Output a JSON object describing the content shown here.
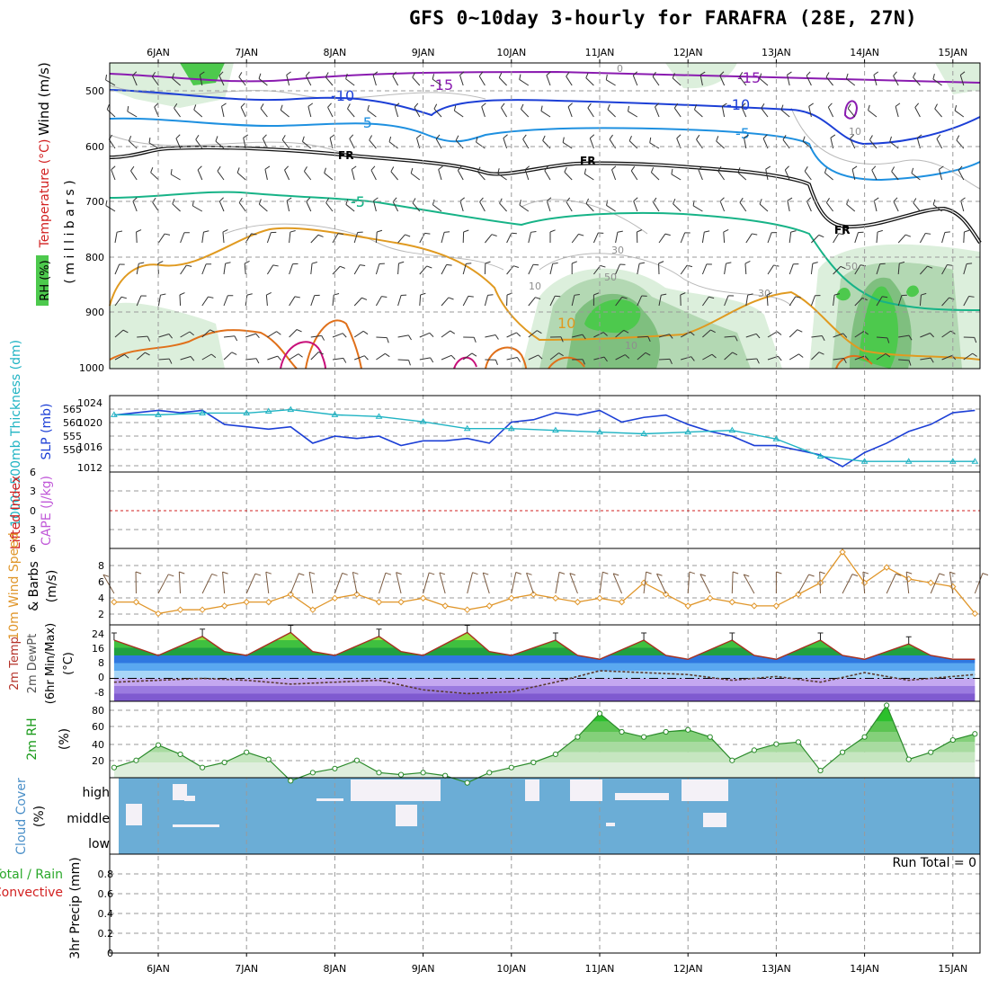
{
  "title": "GFS 0~10day 3-hourly for FARAFRA (28E, 27N)",
  "date_labels": [
    "6JAN",
    "7JAN",
    "8JAN",
    "9JAN",
    "10JAN",
    "11JAN",
    "12JAN",
    "13JAN",
    "14JAN",
    "15JAN"
  ],
  "colors": {
    "purple": "#8a1bb0",
    "blue": "#1c3fd6",
    "lightblue": "#1e90e0",
    "teal": "#17b387",
    "orange": "#e09a20",
    "darkorange": "#e0701a",
    "magenta": "#c8107a",
    "rh_light": "#dcefdc",
    "rh_mid": "#b3d8b3",
    "rh_dark": "#7fbf7f",
    "rh_green": "#4dc94d",
    "cloud": "#6badd6",
    "slp": "#1c3fd6",
    "thickness": "#1fb3c3",
    "wind10": "#e0962a",
    "li_line": "#d22020"
  },
  "panels": {
    "upper": {
      "ylabel_parts": [
        "Wind (m/s)",
        "Temperature (°C)",
        "RH (%)",
        "( m i l l i b a r s )"
      ],
      "yticks": [
        "500",
        "600",
        "700",
        "800",
        "900",
        "1000"
      ],
      "contour_labels": [
        "-15",
        "-15",
        "-10",
        "-10",
        "-5",
        "-5",
        "FR",
        "FR",
        "FR",
        "FR",
        "-5",
        "-5",
        "10",
        "50",
        "50",
        "30",
        "30",
        "10",
        "10",
        "10",
        "0"
      ]
    },
    "slp": {
      "ylabel_left": "1000~500mb Thickness (dm)",
      "ylabel_right": "SLP (mb)",
      "yticks_left": [
        "565",
        "560",
        "555",
        "550"
      ],
      "yticks_right": [
        "1024",
        "1020",
        "1016",
        "1012"
      ]
    },
    "cape": {
      "ylabel_parts": [
        "Lifted Index",
        "CAPE (J/kg)"
      ],
      "yticks": [
        "6",
        "3",
        "0",
        "3",
        "6"
      ]
    },
    "wind10": {
      "ylabel_parts": [
        "10m Wind Speed",
        "& Barbs",
        "(m/s)"
      ],
      "yticks": [
        "8",
        "6",
        "4",
        "2"
      ]
    },
    "temp2m": {
      "ylabel_parts": [
        "2m Temp",
        "2m DewPt",
        "(6hr Min/Max)",
        "(°C)"
      ],
      "yticks": [
        "24",
        "16",
        "8",
        "0",
        "-8"
      ]
    },
    "rh2m": {
      "ylabel_parts": [
        "2m RH",
        "(%)"
      ],
      "yticks": [
        "80",
        "60",
        "40",
        "20"
      ]
    },
    "cloud": {
      "ylabel_parts": [
        "Cloud Cover",
        "(%)"
      ],
      "levels": [
        "high",
        "middle",
        "low"
      ]
    },
    "precip": {
      "ylabel_parts": [
        "Total / Rain",
        "Convective",
        "3hr Precip (mm)"
      ],
      "yticks": [
        "0.8",
        "0.6",
        "0.4",
        "0.2",
        "0"
      ],
      "run_total": "Run Total = 0"
    }
  },
  "chart_data": [
    {
      "type": "line",
      "title": "",
      "ylabel": "SLP (mb)",
      "x_unit": "days from 6JAN 00Z",
      "series": [
        {
          "name": "SLP",
          "x": [
            -0.5,
            -0.25,
            0,
            0.25,
            0.5,
            0.75,
            1,
            1.25,
            1.5,
            1.75,
            2,
            2.25,
            2.5,
            2.75,
            3,
            3.25,
            3.5,
            3.75,
            4,
            4.25,
            4.5,
            4.75,
            5,
            5.25,
            5.5,
            5.75,
            6,
            6.25,
            6.5,
            6.75,
            7,
            7.25,
            7.5,
            7.75,
            8,
            8.25,
            8.5,
            8.75,
            9,
            9.25
          ],
          "values": [
            1022,
            1022.5,
            1023,
            1022.5,
            1023,
            1020,
            1019.5,
            1019,
            1019.5,
            1016,
            1017.5,
            1017,
            1017.5,
            1015.5,
            1016.5,
            1016.5,
            1017,
            1016,
            1020.5,
            1021,
            1022.5,
            1022,
            1023,
            1020.5,
            1021.5,
            1022,
            1020,
            1018.5,
            1017.5,
            1015.5,
            1015.5,
            1014.5,
            1013.5,
            1011,
            1014,
            1016,
            1018.5,
            1020,
            1022.5,
            1023
          ]
        },
        {
          "name": "Thickness",
          "x": [
            -0.5,
            0,
            0.5,
            1,
            1.25,
            1.5,
            2,
            2.5,
            3,
            3.5,
            4,
            4.5,
            5,
            5.5,
            6,
            6.5,
            7,
            7.5,
            8,
            8.5,
            9,
            9.25
          ],
          "values": [
            563,
            563,
            563.5,
            563.5,
            564,
            564.5,
            563,
            562.5,
            561,
            559,
            559,
            558.5,
            558,
            557.5,
            558,
            558.5,
            556,
            551,
            549.5,
            549.5,
            549.5,
            549.5
          ]
        }
      ],
      "ylim_left": [
        548,
        567
      ],
      "ylim_right": [
        1011,
        1025
      ]
    },
    {
      "type": "line",
      "title": "",
      "ylabel": "10m Wind Speed (m/s)",
      "x_unit": "days from 6JAN 00Z",
      "series": [
        {
          "name": "10m Wind Speed",
          "x": [
            -0.5,
            -0.25,
            0,
            0.25,
            0.5,
            0.75,
            1,
            1.25,
            1.5,
            1.75,
            2,
            2.25,
            2.5,
            2.75,
            3,
            3.25,
            3.5,
            3.75,
            4,
            4.25,
            4.5,
            4.75,
            5,
            5.25,
            5.5,
            5.75,
            6,
            6.25,
            6.5,
            6.75,
            7,
            7.25,
            7.5,
            7.75,
            8,
            8.25,
            8.5,
            8.75,
            9,
            9.25
          ],
          "values": [
            2.5,
            2.5,
            1,
            1.5,
            1.5,
            2,
            2.5,
            2.5,
            3.5,
            1.5,
            3,
            3.5,
            2.5,
            2.5,
            3,
            2,
            1.5,
            2,
            3,
            3.5,
            3,
            2.5,
            3,
            2.5,
            5,
            3.5,
            2,
            3,
            2.5,
            2,
            2,
            3.5,
            5,
            9,
            5,
            7,
            5.5,
            5,
            4.5,
            1
          ]
        }
      ],
      "ylim": [
        0,
        9
      ]
    },
    {
      "type": "area",
      "title": "",
      "ylabel": "2m Temp (°C)",
      "x_unit": "days from 6JAN 00Z",
      "series": [
        {
          "name": "2m Temp",
          "x": [
            -0.5,
            0,
            0.5,
            0.75,
            1,
            1.5,
            1.75,
            2,
            2.5,
            2.75,
            3,
            3.5,
            3.75,
            4,
            4.5,
            4.75,
            5,
            5.5,
            5.75,
            6,
            6.5,
            6.75,
            7,
            7.5,
            7.75,
            8,
            8.5,
            8.75,
            9,
            9.25
          ],
          "values": [
            20,
            12,
            22,
            14,
            12,
            24,
            14,
            12,
            22,
            14,
            12,
            24,
            14,
            12,
            20,
            12,
            10,
            20,
            12,
            10,
            20,
            12,
            10,
            20,
            12,
            10,
            18,
            12,
            10,
            10
          ]
        },
        {
          "name": "2m DewPt",
          "x": [
            -0.5,
            0,
            0.5,
            1,
            1.5,
            2,
            2.5,
            3,
            3.5,
            4,
            4.5,
            5,
            5.5,
            6,
            6.5,
            7,
            7.5,
            8,
            8.5,
            9,
            9.25
          ],
          "values": [
            -2,
            -1,
            0,
            -1,
            -3,
            -2,
            -1,
            -6,
            -8,
            -7,
            -2,
            4,
            3,
            2,
            -1,
            1,
            -2,
            3,
            -1,
            1,
            2
          ]
        }
      ],
      "ylim": [
        -12,
        28
      ]
    },
    {
      "type": "area",
      "title": "",
      "ylabel": "2m RH (%)",
      "x_unit": "days from 6JAN 00Z",
      "series": [
        {
          "name": "2m RH",
          "x": [
            -0.5,
            -0.25,
            0,
            0.25,
            0.5,
            0.75,
            1,
            1.25,
            1.5,
            1.75,
            2,
            2.25,
            2.5,
            2.75,
            3,
            3.25,
            3.5,
            3.75,
            4,
            4.25,
            4.5,
            4.75,
            5,
            5.25,
            5.5,
            5.75,
            6,
            6.25,
            6.5,
            6.75,
            7,
            7.25,
            7.5,
            7.75,
            8,
            8.25,
            8.5,
            8.75,
            9,
            9.25
          ],
          "values": [
            25,
            32,
            47,
            38,
            25,
            30,
            40,
            33,
            12,
            20,
            24,
            32,
            20,
            18,
            20,
            17,
            10,
            20,
            25,
            30,
            38,
            55,
            78,
            60,
            55,
            60,
            62,
            55,
            32,
            42,
            48,
            50,
            22,
            40,
            55,
            86,
            33,
            40,
            52,
            58
          ]
        }
      ],
      "ylim": [
        15,
        90
      ]
    },
    {
      "type": "bar",
      "title": "",
      "ylabel": "3hr Precip (mm)",
      "categories": [],
      "values": [],
      "ylim": [
        0,
        0.9
      ]
    }
  ]
}
